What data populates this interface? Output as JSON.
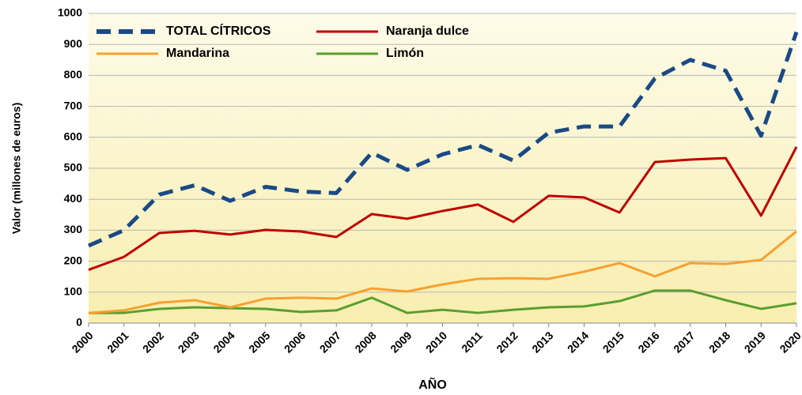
{
  "chart_data": {
    "type": "line",
    "xlabel": "AÑO",
    "ylabel": "Valor (millones de euros)",
    "categories": [
      "2000",
      "2001",
      "2002",
      "2003",
      "2004",
      "2005",
      "2006",
      "2007",
      "2008",
      "2009",
      "2010",
      "2011",
      "2012",
      "2013",
      "2014",
      "2015",
      "2016",
      "2017",
      "2018",
      "2019",
      "2020"
    ],
    "series": [
      {
        "name": "TOTAL CÍTRICOS",
        "color": "#1a4a86",
        "dashed": true,
        "values": [
          250,
          300,
          415,
          445,
          395,
          440,
          425,
          420,
          550,
          495,
          545,
          575,
          525,
          615,
          635,
          635,
          790,
          850,
          815,
          605,
          940
        ]
      },
      {
        "name": "Naranja dulce",
        "color": "#c00000",
        "dashed": false,
        "values": [
          172,
          214,
          291,
          298,
          286,
          301,
          296,
          278,
          352,
          337,
          362,
          383,
          327,
          411,
          406,
          357,
          520,
          528,
          533,
          347,
          569
        ]
      },
      {
        "name": "Mandarina",
        "color": "#f7a030",
        "dashed": false,
        "values": [
          33,
          41,
          66,
          74,
          51,
          79,
          82,
          79,
          112,
          102,
          125,
          143,
          145,
          143,
          166,
          194,
          151,
          194,
          191,
          204,
          296
        ]
      },
      {
        "name": "Limón",
        "color": "#5a9e2e",
        "dashed": false,
        "values": [
          33,
          33,
          46,
          51,
          48,
          46,
          36,
          41,
          82,
          33,
          43,
          33,
          43,
          51,
          54,
          71,
          105,
          105,
          74,
          46,
          64
        ]
      }
    ],
    "ylim": [
      0,
      1000
    ],
    "yticks": [
      0,
      100,
      200,
      300,
      400,
      500,
      600,
      700,
      800,
      900,
      1000
    ],
    "grid": true,
    "legend": "upper left"
  }
}
